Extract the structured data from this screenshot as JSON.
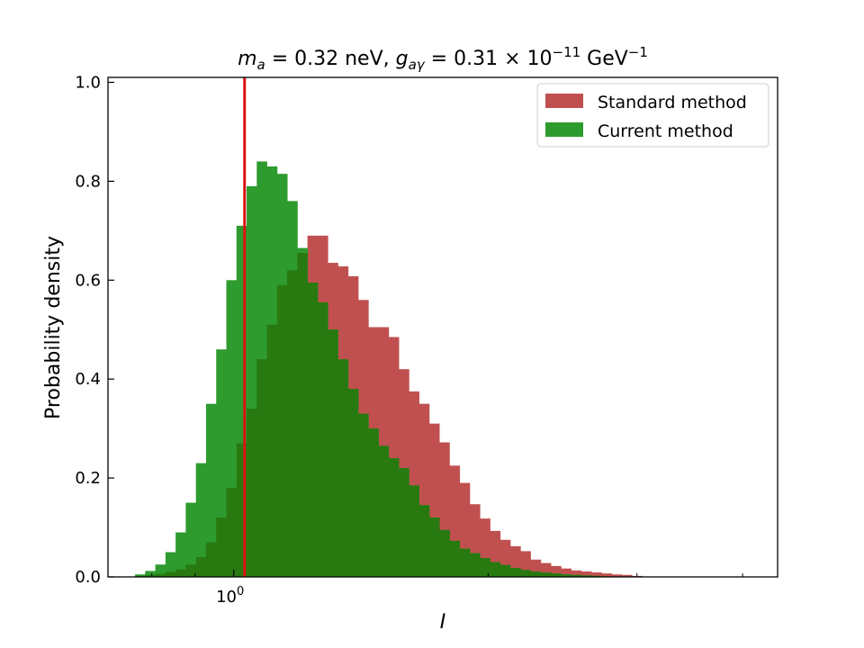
{
  "chart_data": {
    "type": "histogram",
    "title": "m_a = 0.32 neV, g_aγ = 0.31 × 10^-11 GeV^-1",
    "title_parts": {
      "m": "m",
      "m_sub": "a",
      "m_eq": " = 0.32 neV, ",
      "g": "g",
      "g_sub": "aγ",
      "g_eq": " = 0.31 × 10",
      "g_exp": "−11",
      "g_unit": " GeV",
      "g_unit_exp": "−1"
    },
    "xlabel": "I",
    "ylabel": "Probability density",
    "x_scale": "log",
    "xlim": [
      0.71,
      4.4
    ],
    "ylim": [
      0,
      1.01
    ],
    "x_major_ticks": [
      {
        "value": 1.0,
        "base": "10",
        "exp": "0"
      }
    ],
    "x_minor_ticks": [
      0.8,
      0.9,
      2,
      3,
      4
    ],
    "y_ticks": [
      0.0,
      0.2,
      0.4,
      0.6,
      0.8,
      1.0
    ],
    "y_tick_labels": [
      "0.0",
      "0.2",
      "0.4",
      "0.6",
      "0.8",
      "1.0"
    ],
    "vline": {
      "x": 1.03,
      "color": "#dd1111"
    },
    "grid": false,
    "legend_position": "top-right",
    "bin_edges": [
      0.7643,
      0.7857,
      0.8077,
      0.8303,
      0.8536,
      0.8775,
      0.9021,
      0.9274,
      0.9534,
      0.9801,
      1.0076,
      1.0358,
      1.0648,
      1.0946,
      1.1253,
      1.1568,
      1.1892,
      1.2225,
      1.2568,
      1.292,
      1.3282,
      1.3654,
      1.4036,
      1.4429,
      1.4833,
      1.5249,
      1.5676,
      1.6115,
      1.6566,
      1.703,
      1.7507,
      1.7998,
      1.8502,
      1.902,
      1.9553,
      2.0101,
      2.0664,
      2.1243,
      2.1838,
      2.2449,
      2.3078,
      2.3724,
      2.4389,
      2.5072,
      2.5774,
      2.6496,
      2.7238,
      2.8001,
      2.8785,
      2.9591,
      3.042,
      3.1272,
      3.2147,
      3.3048,
      3.3973,
      3.4925
    ],
    "series": [
      {
        "name": "Standard method",
        "color": "#c0504f",
        "values": [
          0.002,
          0.004,
          0.006,
          0.01,
          0.015,
          0.025,
          0.04,
          0.07,
          0.12,
          0.18,
          0.27,
          0.34,
          0.44,
          0.51,
          0.59,
          0.62,
          0.655,
          0.69,
          0.69,
          0.635,
          0.628,
          0.608,
          0.56,
          0.505,
          0.505,
          0.485,
          0.42,
          0.375,
          0.35,
          0.31,
          0.272,
          0.225,
          0.19,
          0.147,
          0.118,
          0.093,
          0.075,
          0.062,
          0.052,
          0.035,
          0.028,
          0.022,
          0.017,
          0.013,
          0.011,
          0.009,
          0.007,
          0.005,
          0.004,
          0.002,
          0.0,
          0.0,
          0.0,
          0.0,
          0.0
        ]
      },
      {
        "name": "Current method",
        "color": "#2e9b2e",
        "values": [
          0.005,
          0.012,
          0.025,
          0.05,
          0.09,
          0.15,
          0.23,
          0.35,
          0.46,
          0.6,
          0.71,
          0.79,
          0.84,
          0.83,
          0.815,
          0.76,
          0.665,
          0.595,
          0.555,
          0.5,
          0.44,
          0.38,
          0.33,
          0.3,
          0.265,
          0.24,
          0.22,
          0.185,
          0.145,
          0.12,
          0.095,
          0.073,
          0.057,
          0.048,
          0.038,
          0.03,
          0.024,
          0.018,
          0.014,
          0.011,
          0.009,
          0.007,
          0.005,
          0.004,
          0.003,
          0.002,
          0.001,
          0.0,
          0.0,
          0.0,
          0.0,
          0.0,
          0.0,
          0.0,
          0.0
        ]
      }
    ]
  }
}
